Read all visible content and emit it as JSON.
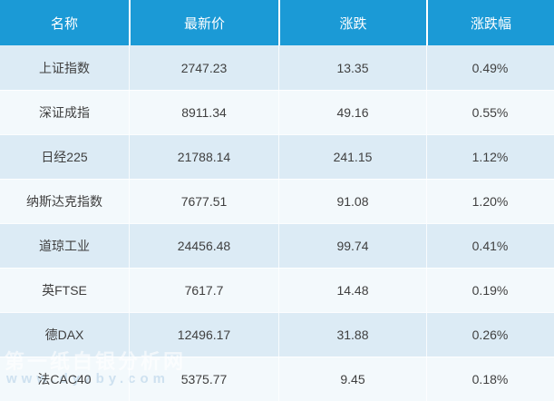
{
  "chart_data": {
    "type": "table",
    "title": "",
    "columns": [
      "名称",
      "最新价",
      "涨跌",
      "涨跌幅"
    ],
    "rows": [
      [
        "上证指数",
        "2747.23",
        "13.35",
        "0.49%"
      ],
      [
        "深证成指",
        "8911.34",
        "49.16",
        "0.55%"
      ],
      [
        "日经225",
        "21788.14",
        "241.15",
        "1.12%"
      ],
      [
        "纳斯达克指数",
        "7677.51",
        "91.08",
        "1.20%"
      ],
      [
        "道琼工业",
        "24456.48",
        "99.74",
        "0.41%"
      ],
      [
        "英FTSE",
        "7617.7",
        "14.48",
        "0.19%"
      ],
      [
        "德DAX",
        "12496.17",
        "31.88",
        "0.26%"
      ],
      [
        "法CAC40",
        "5375.77",
        "9.45",
        "0.18%"
      ]
    ]
  },
  "watermark": {
    "line1": "第一纸白银分析网",
    "line2": "www.dyzby.com"
  },
  "colors": {
    "header_bg": "#1b9ad6",
    "header_text": "#ffffff",
    "row_odd": "#dcebf5",
    "row_even": "#f3f9fc",
    "body_text": "#3f3f3f"
  }
}
